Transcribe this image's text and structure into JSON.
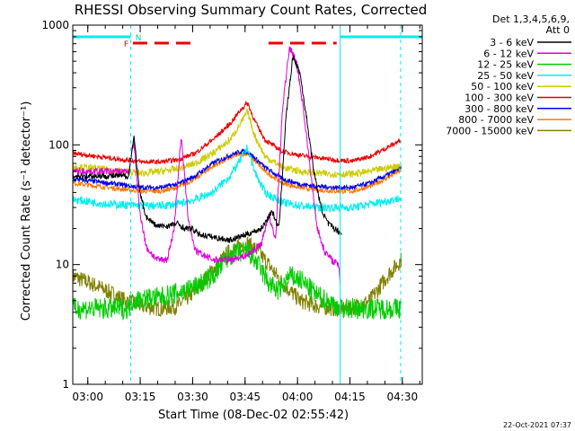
{
  "chart_data": {
    "type": "line",
    "title": "RHESSI Observing Summary Count Rates, Corrected",
    "xlabel": "Start Time (08-Dec-02 02:55:42)",
    "ylabel": "Corrected Count Rate (s⁻¹ detector⁻¹)",
    "y_scale": "log",
    "ylim": [
      1,
      1000
    ],
    "xlim_minutes": [
      0,
      100
    ],
    "x_ticks": [
      {
        "label": "03:00",
        "min": 4.3
      },
      {
        "label": "03:15",
        "min": 19.3
      },
      {
        "label": "03:30",
        "min": 34.3
      },
      {
        "label": "03:45",
        "min": 49.3
      },
      {
        "label": "04:00",
        "min": 64.3
      },
      {
        "label": "04:15",
        "min": 79.3
      },
      {
        "label": "04:30",
        "min": 94.3
      }
    ],
    "y_ticks": [
      {
        "label": "1",
        "value": 1
      },
      {
        "label": "10",
        "value": 10
      },
      {
        "label": "100",
        "value": 100
      },
      {
        "label": "1000",
        "value": 1000
      }
    ],
    "legend_header": [
      "Det 1,3,4,5,6,9,",
      "Att 0"
    ],
    "flags": {
      "night_label": "N",
      "flare_label": "F",
      "night_intervals": [
        [
          0,
          16.6
        ],
        [
          76.5,
          100
        ]
      ],
      "flare_intervals": [
        [
          17.2,
          34.0
        ],
        [
          56.0,
          75.5
        ]
      ],
      "night_boundaries_solid": [
        0,
        76.5
      ],
      "night_boundaries_dashed": [
        16.6,
        93.8
      ]
    },
    "series": [
      {
        "name": "3 - 6 keV",
        "color": "#000000",
        "x": [
          0,
          10,
          16,
          17.5,
          19,
          21,
          24,
          27,
          30,
          32,
          34,
          36,
          40,
          45,
          50,
          54,
          57,
          59,
          61,
          63,
          65,
          67,
          69,
          71,
          73,
          75,
          77
        ],
        "y": [
          55,
          55,
          55,
          120,
          42,
          25,
          21,
          21,
          22,
          20,
          20,
          18,
          17,
          16,
          18,
          20,
          28,
          20,
          170,
          550,
          400,
          160,
          60,
          30,
          22,
          20,
          18
        ]
      },
      {
        "name": "6 - 12 keV",
        "color": "#dd00dd",
        "x": [
          0,
          10,
          16,
          17.5,
          19,
          21,
          24,
          27,
          29,
          31,
          33,
          35,
          40,
          45,
          50,
          54,
          56,
          58,
          60,
          62,
          64,
          66,
          68,
          70,
          72,
          74,
          76,
          76.5
        ],
        "y": [
          60,
          60,
          60,
          110,
          30,
          14,
          11,
          11,
          20,
          118,
          25,
          13,
          11,
          11,
          12,
          15,
          26,
          16,
          200,
          650,
          500,
          200,
          60,
          20,
          13,
          11,
          10,
          7
        ]
      },
      {
        "name": "12 - 25 keV",
        "color": "#00cc00",
        "x": [
          0,
          10,
          16,
          17,
          20,
          25,
          30,
          35,
          40,
          45,
          50,
          53,
          56,
          59,
          62,
          65,
          70,
          75,
          77,
          80,
          85,
          90,
          94
        ],
        "y": [
          4.3,
          4.3,
          4.3,
          5,
          5.2,
          5.3,
          5.8,
          6.5,
          8,
          12,
          13,
          10,
          7,
          6,
          8,
          7.5,
          5.5,
          4.6,
          4.3,
          4.3,
          4.3,
          4.3,
          4.3
        ]
      },
      {
        "name": "25 - 50 keV",
        "color": "#00eeee",
        "x": [
          0,
          10,
          20,
          25,
          30,
          35,
          40,
          45,
          48,
          50,
          52,
          55,
          60,
          65,
          70,
          75,
          80,
          85,
          90,
          94
        ],
        "y": [
          35,
          32,
          31,
          31,
          32,
          35,
          40,
          55,
          75,
          95,
          60,
          40,
          33,
          31,
          30,
          30,
          30,
          32,
          34,
          36
        ]
      },
      {
        "name": "50 - 100 keV",
        "color": "#cccc00",
        "x": [
          0,
          10,
          20,
          25,
          30,
          35,
          40,
          45,
          48,
          50,
          52,
          55,
          60,
          65,
          70,
          75,
          80,
          85,
          90,
          94
        ],
        "y": [
          66,
          62,
          58,
          60,
          63,
          70,
          85,
          110,
          150,
          190,
          120,
          80,
          65,
          60,
          58,
          57,
          57,
          60,
          64,
          68
        ]
      },
      {
        "name": "100 - 300 keV",
        "color": "#ee0000",
        "x": [
          0,
          10,
          20,
          25,
          30,
          35,
          40,
          45,
          48,
          50,
          52,
          55,
          60,
          65,
          70,
          75,
          80,
          85,
          90,
          94
        ],
        "y": [
          85,
          78,
          72,
          72,
          75,
          85,
          110,
          150,
          195,
          225,
          160,
          110,
          88,
          82,
          78,
          75,
          73,
          80,
          95,
          110
        ]
      },
      {
        "name": "300 - 800 keV",
        "color": "#0000ee",
        "x": [
          0,
          10,
          20,
          25,
          30,
          35,
          40,
          45,
          48,
          50,
          52,
          55,
          60,
          65,
          70,
          75,
          80,
          85,
          90,
          94
        ],
        "y": [
          52,
          48,
          44,
          44,
          47,
          55,
          70,
          82,
          88,
          88,
          78,
          65,
          52,
          47,
          45,
          44,
          44,
          48,
          56,
          65
        ]
      },
      {
        "name": "800 - 7000 keV",
        "color": "#ff7700",
        "x": [
          0,
          10,
          20,
          25,
          30,
          35,
          40,
          45,
          48,
          50,
          52,
          55,
          60,
          65,
          70,
          75,
          80,
          85,
          90,
          94
        ],
        "y": [
          48,
          44,
          41,
          41,
          44,
          52,
          66,
          78,
          84,
          84,
          74,
          60,
          48,
          44,
          42,
          41,
          41,
          45,
          53,
          62
        ]
      },
      {
        "name": "7000 - 15000 keV",
        "color": "#808000",
        "x": [
          0,
          5,
          10,
          15,
          20,
          25,
          30,
          35,
          40,
          45,
          50,
          53,
          56,
          60,
          65,
          70,
          75,
          80,
          85,
          90,
          94
        ],
        "y": [
          8,
          7,
          6,
          5,
          4.5,
          4.3,
          4.5,
          6,
          9,
          13,
          15,
          13,
          10,
          7,
          5,
          4.5,
          4.3,
          4.3,
          5,
          8,
          11
        ]
      }
    ]
  },
  "footer": {
    "timestamp": "22-Oct-2021 07:37"
  }
}
